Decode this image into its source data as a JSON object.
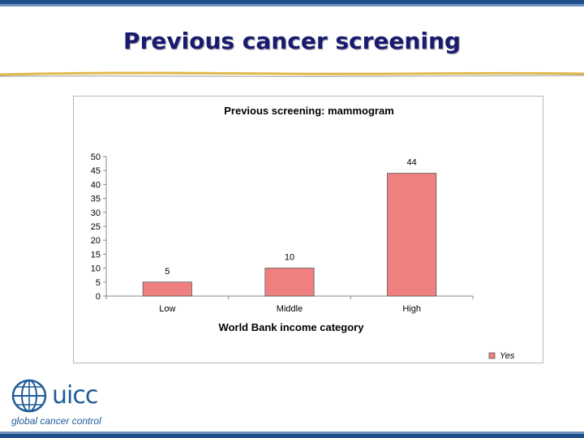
{
  "slide": {
    "title": "Previous cancer screening"
  },
  "logo": {
    "name": "uicc",
    "tagline": "global cancer control",
    "icon": "globe-icon",
    "color": "#1f5b9a"
  },
  "theme": {
    "title_color": "#1a1a6e",
    "band_color": "#1f4f8a",
    "rule_color": "#e0b84a"
  },
  "chart_data": {
    "type": "bar",
    "title": "Previous screening: mammogram",
    "xlabel": "World Bank income category",
    "ylabel": "",
    "categories": [
      "Low",
      "Middle",
      "High"
    ],
    "series": [
      {
        "name": "Yes",
        "values": [
          5,
          10,
          44
        ],
        "color": "#f08080"
      }
    ],
    "ylim": [
      0,
      50
    ],
    "yticks": [
      0,
      5,
      10,
      15,
      20,
      25,
      30,
      35,
      40,
      45,
      50
    ],
    "data_labels": true,
    "grid": false,
    "legend": "bottom-right"
  }
}
